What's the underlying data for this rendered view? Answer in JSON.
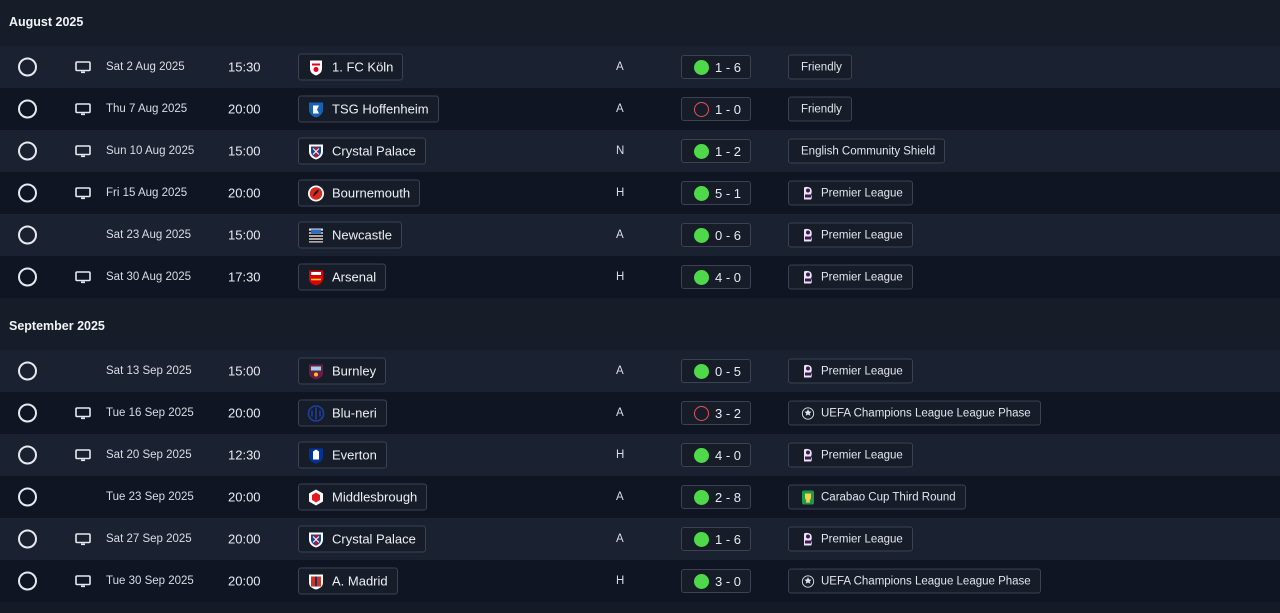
{
  "months": [
    {
      "label": "August 2025",
      "matches": [
        {
          "date": "Sat 2 Aug 2025",
          "time": "15:30",
          "tv": true,
          "team": "1. FC Köln",
          "crest": "koln-crest-icon",
          "venue": "A",
          "result": "win",
          "score": "1 - 6",
          "competition": "Friendly",
          "comp_logo": ""
        },
        {
          "date": "Thu 7 Aug 2025",
          "time": "20:00",
          "tv": true,
          "team": "TSG Hoffenheim",
          "crest": "hoffenheim-crest-icon",
          "venue": "A",
          "result": "loss",
          "score": "1 - 0",
          "competition": "Friendly",
          "comp_logo": ""
        },
        {
          "date": "Sun 10 Aug 2025",
          "time": "15:00",
          "tv": true,
          "team": "Crystal Palace",
          "crest": "crystal-palace-crest-icon",
          "venue": "N",
          "result": "win",
          "score": "1 - 2",
          "competition": "English Community Shield",
          "comp_logo": ""
        },
        {
          "date": "Fri 15 Aug 2025",
          "time": "20:00",
          "tv": true,
          "team": "Bournemouth",
          "crest": "bournemouth-crest-icon",
          "venue": "H",
          "result": "win",
          "score": "5 - 1",
          "competition": "Premier League",
          "comp_logo": "premier-league-logo-icon"
        },
        {
          "date": "Sat 23 Aug 2025",
          "time": "15:00",
          "tv": false,
          "team": "Newcastle",
          "crest": "newcastle-crest-icon",
          "venue": "A",
          "result": "win",
          "score": "0 - 6",
          "competition": "Premier League",
          "comp_logo": "premier-league-logo-icon"
        },
        {
          "date": "Sat 30 Aug 2025",
          "time": "17:30",
          "tv": true,
          "team": "Arsenal",
          "crest": "arsenal-crest-icon",
          "venue": "H",
          "result": "win",
          "score": "4 - 0",
          "competition": "Premier League",
          "comp_logo": "premier-league-logo-icon"
        }
      ]
    },
    {
      "label": "September 2025",
      "matches": [
        {
          "date": "Sat 13 Sep 2025",
          "time": "15:00",
          "tv": false,
          "team": "Burnley",
          "crest": "burnley-crest-icon",
          "venue": "A",
          "result": "win",
          "score": "0 - 5",
          "competition": "Premier League",
          "comp_logo": "premier-league-logo-icon"
        },
        {
          "date": "Tue 16 Sep 2025",
          "time": "20:00",
          "tv": true,
          "team": "Blu-neri",
          "crest": "blu-neri-crest-icon",
          "venue": "A",
          "result": "loss",
          "score": "3 - 2",
          "competition": "UEFA Champions League League Phase",
          "comp_logo": "champions-league-logo-icon"
        },
        {
          "date": "Sat 20 Sep 2025",
          "time": "12:30",
          "tv": true,
          "team": "Everton",
          "crest": "everton-crest-icon",
          "venue": "H",
          "result": "win",
          "score": "4 - 0",
          "competition": "Premier League",
          "comp_logo": "premier-league-logo-icon"
        },
        {
          "date": "Tue 23 Sep 2025",
          "time": "20:00",
          "tv": false,
          "team": "Middlesbrough",
          "crest": "middlesbrough-crest-icon",
          "venue": "A",
          "result": "win",
          "score": "2 - 8",
          "competition": "Carabao Cup Third Round",
          "comp_logo": "carabao-cup-logo-icon"
        },
        {
          "date": "Sat 27 Sep 2025",
          "time": "20:00",
          "tv": true,
          "team": "Crystal Palace",
          "crest": "crystal-palace-crest-icon",
          "venue": "A",
          "result": "win",
          "score": "1 - 6",
          "competition": "Premier League",
          "comp_logo": "premier-league-logo-icon"
        },
        {
          "date": "Tue 30 Sep 2025",
          "time": "20:00",
          "tv": true,
          "team": "A. Madrid",
          "crest": "atletico-madrid-crest-icon",
          "venue": "H",
          "result": "win",
          "score": "3 - 0",
          "competition": "UEFA Champions League League Phase",
          "comp_logo": "champions-league-logo-icon"
        }
      ]
    }
  ],
  "colors": {
    "background": "#141a26",
    "row_odd": "#1a2130",
    "row_even": "#0f1522",
    "win": "#4fd84a",
    "loss": "#e4555b",
    "border": "#3a4254"
  }
}
